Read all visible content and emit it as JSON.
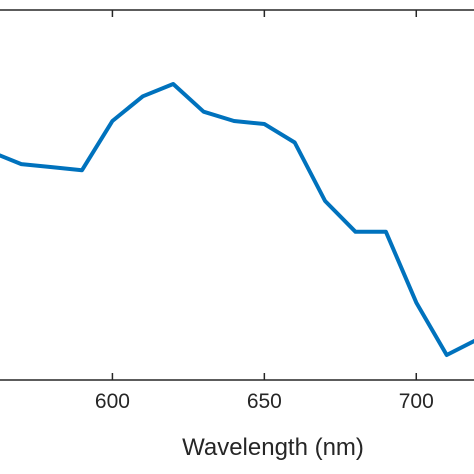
{
  "chart_data": {
    "type": "line",
    "xlabel": "Wavelength (nm)",
    "ylabel": "",
    "xlim": [
      563,
      719
    ],
    "x_ticks": [
      600,
      650,
      700
    ],
    "grid": false,
    "legend": "none",
    "series": [
      {
        "color": "#0072BD",
        "x": [
          560,
          570,
          580,
          590,
          600,
          610,
          620,
          630,
          640,
          650,
          660,
          670,
          680,
          690,
          700,
          710,
          720
        ],
        "y": [
          0.66,
          0.62,
          0.61,
          0.6,
          0.76,
          0.84,
          0.88,
          0.79,
          0.76,
          0.75,
          0.69,
          0.5,
          0.4,
          0.4,
          0.17,
          0.0,
          0.05
        ]
      }
    ]
  }
}
